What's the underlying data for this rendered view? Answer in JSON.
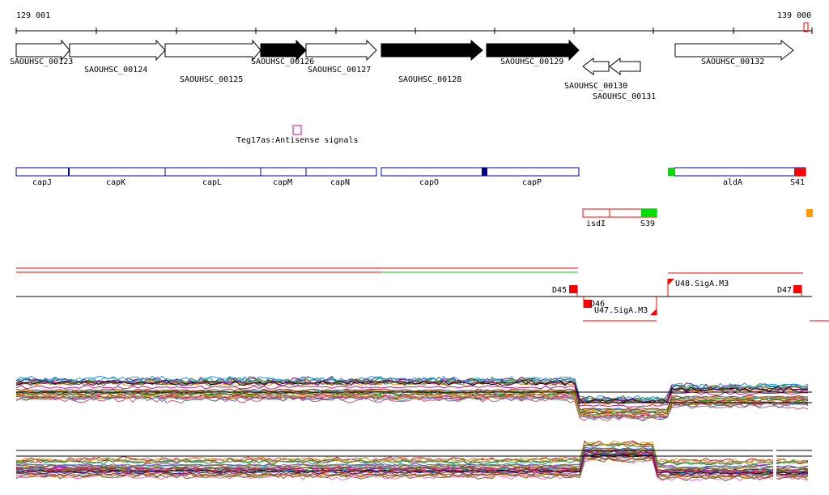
{
  "ruler": {
    "start_label": "129 001",
    "end_label": "139 000"
  },
  "genes_forward": [
    {
      "id": "SAOUHSC_00123",
      "filled": false
    },
    {
      "id": "SAOUHSC_00124",
      "filled": false
    },
    {
      "id": "SAOUHSC_00125",
      "filled": false
    },
    {
      "id": "SAOUHSC_00126",
      "filled": true
    },
    {
      "id": "SAOUHSC_00127",
      "filled": false
    },
    {
      "id": "SAOUHSC_00128",
      "filled": true
    },
    {
      "id": "SAOUHSC_00129",
      "filled": true
    },
    {
      "id": "SAOUHSC_00132",
      "filled": false
    }
  ],
  "genes_reverse": [
    {
      "id": "SAOUHSC_00130"
    },
    {
      "id": "SAOUHSC_00131"
    }
  ],
  "antisense_label": "Teg17as:Antisense signals",
  "gene_names_track": [
    "capJ",
    "capK",
    "capL",
    "capM",
    "capN",
    "capO",
    "capP",
    "aldA",
    "S41"
  ],
  "track_second": {
    "isd_label": "isdI",
    "s39_label": "S39"
  },
  "transcription_labels": {
    "d45": "D45",
    "d46": "D46",
    "u47": "U47.SigA.M3",
    "u48": "U48.SigA.M3",
    "d47": "D47"
  },
  "colors": {
    "gene_outline": "#000000",
    "gene_filled": "#000000",
    "name_box": "#0000aa",
    "name_box_dark": "#000088",
    "highlight_red": "#ff0000",
    "highlight_green": "#00dd00",
    "highlight_orange": "#ff9900",
    "antisense_magenta": "#dd00aa"
  }
}
